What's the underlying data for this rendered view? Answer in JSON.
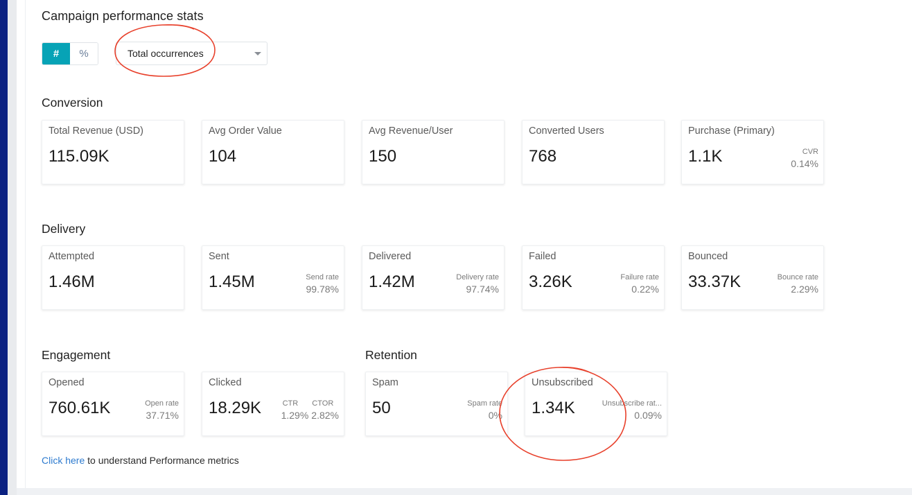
{
  "header": {
    "title": "Campaign performance stats"
  },
  "toggle": {
    "count_symbol": "#",
    "percent_symbol": "%"
  },
  "metric_select": {
    "value": "Total occurrences"
  },
  "sections": {
    "conversion": {
      "title": "Conversion",
      "cards": [
        {
          "label": "Total Revenue (USD)",
          "value": "115.09K"
        },
        {
          "label": "Avg Order Value",
          "value": "104"
        },
        {
          "label": "Avg Revenue/User",
          "value": "150"
        },
        {
          "label": "Converted Users",
          "value": "768"
        },
        {
          "label": "Purchase (Primary)",
          "value": "1.1K",
          "rate_label": "CVR",
          "rate_value": "0.14%"
        }
      ]
    },
    "delivery": {
      "title": "Delivery",
      "cards": [
        {
          "label": "Attempted",
          "value": "1.46M"
        },
        {
          "label": "Sent",
          "value": "1.45M",
          "rate_label": "Send rate",
          "rate_value": "99.78%"
        },
        {
          "label": "Delivered",
          "value": "1.42M",
          "rate_label": "Delivery rate",
          "rate_value": "97.74%"
        },
        {
          "label": "Failed",
          "value": "3.26K",
          "rate_label": "Failure rate",
          "rate_value": "0.22%"
        },
        {
          "label": "Bounced",
          "value": "33.37K",
          "rate_label": "Bounce rate",
          "rate_value": "2.29%"
        }
      ]
    },
    "engagement": {
      "title": "Engagement",
      "cards": [
        {
          "label": "Opened",
          "value": "760.61K",
          "rate_label": "Open rate",
          "rate_value": "37.71%"
        },
        {
          "label": "Clicked",
          "value": "18.29K",
          "ctr_label": "CTR",
          "ctr_value": "1.29%",
          "ctor_label": "CTOR",
          "ctor_value": "2.82%"
        }
      ]
    },
    "retention": {
      "title": "Retention",
      "cards": [
        {
          "label": "Spam",
          "value": "50",
          "rate_label": "Spam rate",
          "rate_value": "0%"
        },
        {
          "label": "Unsubscribed",
          "value": "1.34K",
          "rate_label": "Unsubscribe rat...",
          "rate_value": "0.09%"
        }
      ]
    }
  },
  "footer": {
    "link_text": "Click here",
    "text": " to understand Performance metrics"
  },
  "colors": {
    "accent": "#07a3b6",
    "link": "#2e7bcf",
    "annotation": "#e8412c",
    "rail": "#0b2181"
  }
}
